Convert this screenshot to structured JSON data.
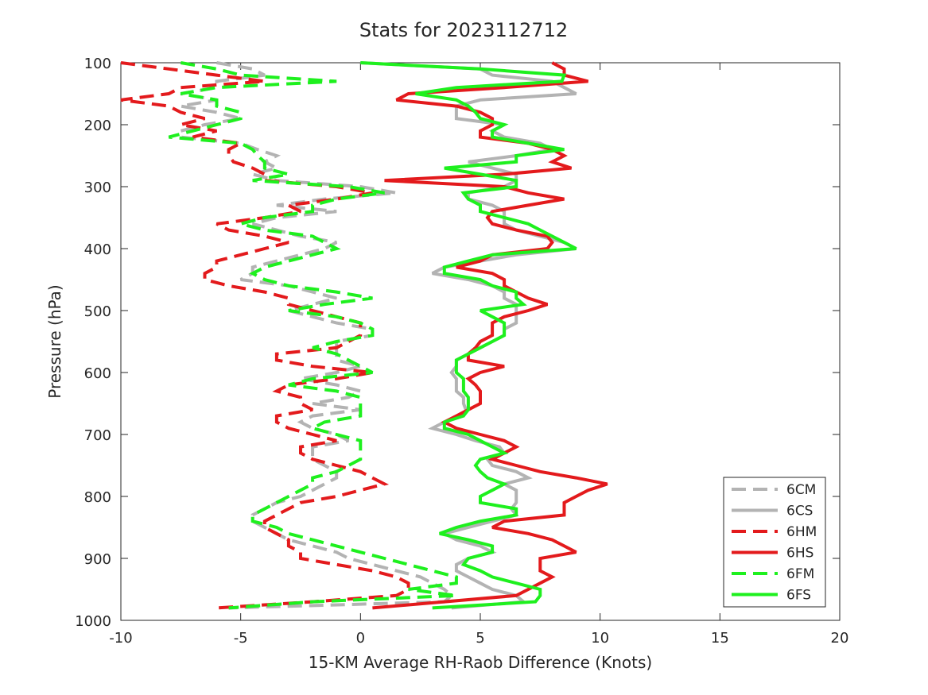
{
  "chart_data": {
    "type": "line",
    "title": "Stats for 2023112712",
    "xlabel": "15-KM Average RH-Raob Difference (Knots)",
    "ylabel": "Pressure (hPa)",
    "xlim": [
      -10,
      20
    ],
    "ylim": [
      1000,
      100
    ],
    "y_reversed": true,
    "xticks": [
      -10,
      -5,
      0,
      5,
      10,
      15,
      20
    ],
    "yticks": [
      100,
      200,
      300,
      400,
      500,
      600,
      700,
      800,
      900,
      1000
    ],
    "grid": false,
    "legend_position": "bottom-right",
    "pressure_levels": [
      100,
      110,
      120,
      130,
      140,
      150,
      160,
      170,
      180,
      190,
      200,
      210,
      220,
      230,
      240,
      250,
      260,
      270,
      280,
      290,
      300,
      310,
      320,
      330,
      340,
      350,
      360,
      370,
      380,
      390,
      400,
      410,
      420,
      430,
      440,
      450,
      460,
      470,
      480,
      490,
      500,
      510,
      520,
      530,
      540,
      550,
      560,
      570,
      580,
      590,
      600,
      610,
      620,
      630,
      640,
      650,
      660,
      670,
      680,
      690,
      700,
      710,
      720,
      730,
      740,
      750,
      760,
      770,
      780,
      790,
      800,
      810,
      820,
      830,
      840,
      850,
      860,
      870,
      880,
      890,
      900,
      910,
      920,
      930,
      940,
      950,
      960,
      970,
      980
    ],
    "series": [
      {
        "name": "6CM",
        "color": "#b3b3b3",
        "dash": true,
        "values": [
          -6,
          -4.5,
          -4,
          -6,
          -6,
          -7.5,
          -6,
          -7.5,
          -6,
          -5,
          -6.5,
          -7.5,
          -7.5,
          -5,
          -4.3,
          -3.5,
          -4,
          -3.5,
          -4.5,
          -3.5,
          0,
          1.5,
          -1.5,
          -3.5,
          -1,
          -3.5,
          -4.5,
          -3.5,
          -2.5,
          -1,
          -1.5,
          -2.5,
          -3.5,
          -4.5,
          -4.5,
          -5,
          -3,
          -2,
          -1,
          -2,
          -3,
          -2,
          -1,
          0.5,
          0.5,
          -1,
          -1,
          -1,
          -1,
          0,
          -1,
          -2.5,
          -1,
          0,
          -0.5,
          -2,
          0,
          -2,
          -2.5,
          -2,
          -1,
          -0.5,
          -2,
          -2,
          -2,
          -1.5,
          -1,
          -1,
          -1.5,
          -2,
          -2.5,
          -3.5,
          -4,
          -4.5,
          -4.5,
          -4,
          -3.5,
          -3,
          -2,
          -1,
          -0.5,
          0.5,
          1.5,
          2.5,
          3,
          3.5,
          3.8,
          3.5,
          -5.5
        ]
      },
      {
        "name": "6CS",
        "color": "#b3b3b3",
        "dash": false,
        "values": [
          0,
          5,
          5.5,
          8,
          8.5,
          9,
          5,
          4,
          4,
          4,
          6,
          5.5,
          6,
          7.5,
          8,
          6.5,
          4.5,
          5.5,
          6.5,
          6.5,
          6,
          4.5,
          4.5,
          5.5,
          6,
          6,
          6,
          6.5,
          7.5,
          8.5,
          9,
          6.5,
          5,
          3.5,
          3,
          4.5,
          5.5,
          6,
          6,
          6.5,
          6.5,
          6.5,
          6.5,
          6,
          6,
          5.5,
          5,
          4.5,
          4,
          4,
          3.8,
          4,
          4,
          4,
          4.3,
          4.3,
          4.4,
          4.3,
          3.5,
          3,
          4,
          4.8,
          5.8,
          6,
          5.3,
          5.5,
          6.5,
          7,
          6,
          6.5,
          6.5,
          6.5,
          6.3,
          6.5,
          5.5,
          4.5,
          3.5,
          4,
          5,
          5.5,
          4.5,
          4,
          4,
          4.5,
          5,
          5.5,
          6.5,
          6.8,
          3.8
        ]
      },
      {
        "name": "6HM",
        "color": "#e31a1c",
        "dash": true,
        "values": [
          -10,
          -8,
          -6,
          -4,
          -7.5,
          -8,
          -10,
          -8,
          -7.5,
          -6.5,
          -7.5,
          -6,
          -7,
          -5,
          -5.5,
          -5.5,
          -5.3,
          -4.5,
          -4,
          -4,
          -1,
          0.5,
          -1,
          -3,
          -2.5,
          -4,
          -6,
          -5.5,
          -4,
          -3,
          -4,
          -5,
          -6,
          -6,
          -6.5,
          -6.5,
          -5.5,
          -4,
          -3,
          -3,
          -2,
          -1,
          0,
          0,
          0,
          -0.5,
          -1,
          -3.5,
          -3.5,
          -2,
          0.5,
          -1,
          -3,
          -3.5,
          -2.5,
          -2.5,
          -2,
          -3.5,
          -3.5,
          -3,
          -2,
          -1,
          -2.5,
          -2.5,
          -2,
          -1,
          0,
          0.5,
          1,
          0,
          -1,
          -2.5,
          -3,
          -3.5,
          -4,
          -4,
          -3.5,
          -3,
          -3,
          -2.5,
          -2.5,
          -1,
          0.5,
          1.5,
          2,
          2,
          1.5,
          -2,
          -6
        ]
      },
      {
        "name": "6HS",
        "color": "#e31a1c",
        "dash": false,
        "values": [
          8,
          8.5,
          8.5,
          9.5,
          6,
          2,
          1.5,
          4,
          5,
          5.5,
          5.5,
          5,
          5,
          7,
          8,
          8.5,
          8,
          8.8,
          6,
          1,
          6,
          7,
          8.5,
          7,
          5.5,
          5.3,
          5.5,
          6.5,
          7.8,
          8,
          7.8,
          5.5,
          5,
          4,
          5.5,
          6,
          6,
          6.5,
          7,
          7.8,
          7,
          6,
          5.5,
          5.5,
          5.5,
          5,
          4.8,
          4.5,
          4.5,
          6,
          5,
          4.5,
          4.8,
          5,
          5,
          5,
          4.5,
          4,
          3.5,
          4,
          5,
          6,
          6.5,
          6,
          5.5,
          6.5,
          7.5,
          9,
          10.3,
          9.5,
          9,
          8.5,
          8.5,
          8.5,
          6,
          5.5,
          7,
          8,
          8.5,
          9,
          7.5,
          7.5,
          7.5,
          8,
          7.5,
          7,
          6.5,
          3.5,
          0.5
        ]
      },
      {
        "name": "6FM",
        "color": "#1ef01e",
        "dash": true,
        "values": [
          -7.5,
          -6,
          -5,
          -1,
          -6,
          -7.5,
          -6,
          -6,
          -5,
          -5,
          -6,
          -7,
          -8,
          -5,
          -4.5,
          -4.3,
          -4,
          -4,
          -3,
          -4.5,
          -0.5,
          1,
          -1,
          -2,
          -2,
          -4,
          -5,
          -4,
          -2,
          -1.5,
          -1,
          -2,
          -3,
          -4,
          -4.5,
          -4,
          -3,
          -1,
          0.5,
          -1.5,
          -3,
          -1,
          0,
          0.5,
          0.5,
          -1,
          -2,
          -1,
          -0.5,
          0,
          0.5,
          -2,
          -3,
          -1,
          0,
          0,
          0,
          0,
          -1.5,
          -2,
          -1,
          0,
          0,
          0,
          0,
          -0.5,
          -1,
          -2,
          -2,
          -2.5,
          -3,
          -3.5,
          -4,
          -4.5,
          -4.5,
          -3.5,
          -3,
          -2,
          -1,
          0,
          1,
          2,
          3,
          4,
          4,
          2,
          4,
          -2,
          -5.5
        ]
      },
      {
        "name": "6FS",
        "color": "#1ef01e",
        "dash": false,
        "values": [
          0,
          5,
          8.5,
          8.4,
          4,
          2.3,
          4,
          4.5,
          4.8,
          5,
          6,
          5.5,
          5.5,
          7,
          8.5,
          6.5,
          6.5,
          3.5,
          5,
          6.5,
          6.5,
          4.3,
          4.5,
          5,
          5,
          6,
          7,
          7.5,
          8,
          8.5,
          9,
          5.5,
          4.5,
          3.5,
          3.5,
          5,
          5.5,
          6.5,
          6.5,
          6.8,
          5,
          5.5,
          6,
          6,
          6,
          5.5,
          5,
          4.5,
          4,
          4,
          4,
          4.3,
          4.3,
          4.3,
          4.5,
          4.5,
          4.5,
          4.3,
          3.5,
          3.5,
          4.5,
          5,
          5.5,
          6,
          5,
          4.8,
          5,
          5.3,
          6,
          5.5,
          5,
          5,
          6.5,
          6.5,
          5,
          4,
          3.3,
          4.5,
          5.5,
          5.5,
          4.5,
          4.3,
          5,
          5.5,
          6.5,
          7.5,
          7.5,
          7.3,
          3
        ]
      }
    ]
  }
}
